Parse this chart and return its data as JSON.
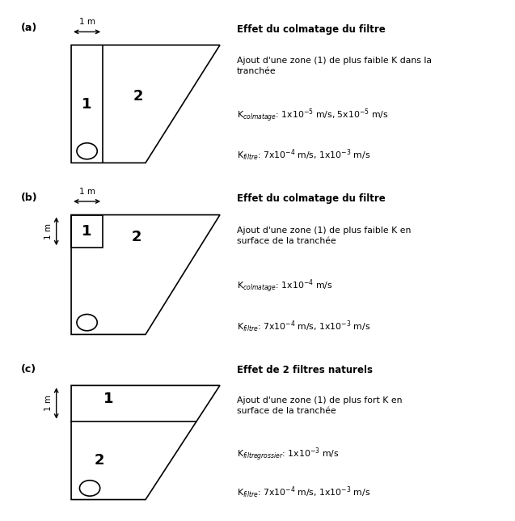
{
  "panels": [
    {
      "label": "(a)",
      "title": "Effet du colmatage du filtre",
      "desc": "Ajout d'une zone (1) de plus faible K dans la\ntranchée",
      "k1_label": "K",
      "k1_sub": "colmatage",
      "k1_val": ": 1x10",
      "k1_exp1": "-5",
      "k1_mid": " m/s, 5x10",
      "k1_exp2": "-5",
      "k1_end": " m/s",
      "k2_label": "K",
      "k2_sub": "filtre",
      "k2_val": ": 7x10",
      "k2_exp1": "-4",
      "k2_mid": " m/s, 1x10",
      "k2_exp2": "-3",
      "k2_end": " m/s",
      "type": "a"
    },
    {
      "label": "(b)",
      "title": "Effet du colmatage du filtre",
      "desc": "Ajout d'une zone (1) de plus faible K en\nsurface de la tranchée",
      "k1_label": "K",
      "k1_sub": "colmatage",
      "k1_val": ": 1x10",
      "k1_exp1": "-4",
      "k1_mid": "",
      "k1_exp2": "",
      "k1_end": " m/s",
      "k2_label": "K",
      "k2_sub": "filtre",
      "k2_val": ": 7x10",
      "k2_exp1": "-4",
      "k2_mid": " m/s, 1x10",
      "k2_exp2": "-3",
      "k2_end": " m/s",
      "type": "b"
    },
    {
      "label": "(c)",
      "title": "Effet de 2 filtres naturels",
      "desc": "Ajout d'une zone (1) de plus fort K en\nsurface de la tranchée",
      "k1_label": "K",
      "k1_sub": "filtre grossier",
      "k1_val": ": 1x10",
      "k1_exp1": "-3",
      "k1_mid": "",
      "k1_exp2": "",
      "k1_end": " m/s",
      "k2_label": "K",
      "k2_sub": "filtre",
      "k2_val": ": 7x10",
      "k2_exp1": "-4",
      "k2_mid": " m/s, 1x10",
      "k2_exp2": "-3",
      "k2_end": " m/s",
      "type": "c"
    }
  ],
  "bg_color": "#ffffff",
  "line_color": "#000000"
}
